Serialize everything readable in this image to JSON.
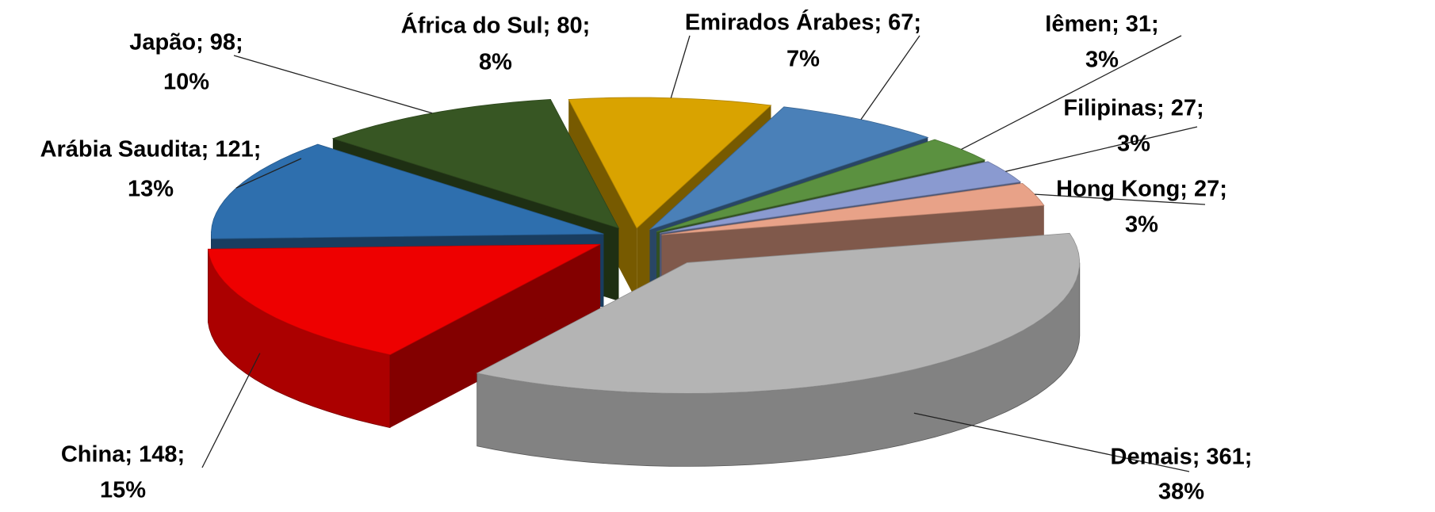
{
  "chart_data": {
    "type": "pie3d",
    "values": [
      80,
      67,
      31,
      27,
      27,
      361,
      148,
      121,
      98
    ],
    "value_labels": [
      "África do Sul; 80;",
      "Emirados Árabes; 67;",
      "Iêmen; 31;",
      "Filipinas; 27;",
      "Hong Kong; 27;",
      "Demais; 361;",
      "China; 148;",
      "Arábia Saudita; 121;",
      "Japão; 98;"
    ],
    "percent_labels": [
      "8%",
      "7%",
      "3%",
      "3%",
      "3%",
      "38%",
      "15%",
      "13%",
      "10%"
    ],
    "colors": [
      "#d9a300",
      "#4a80b8",
      "#5b9140",
      "#8a9ad0",
      "#e8a288",
      "#b4b4b4",
      "#ee0000",
      "#2e6fae",
      "#375623"
    ]
  }
}
